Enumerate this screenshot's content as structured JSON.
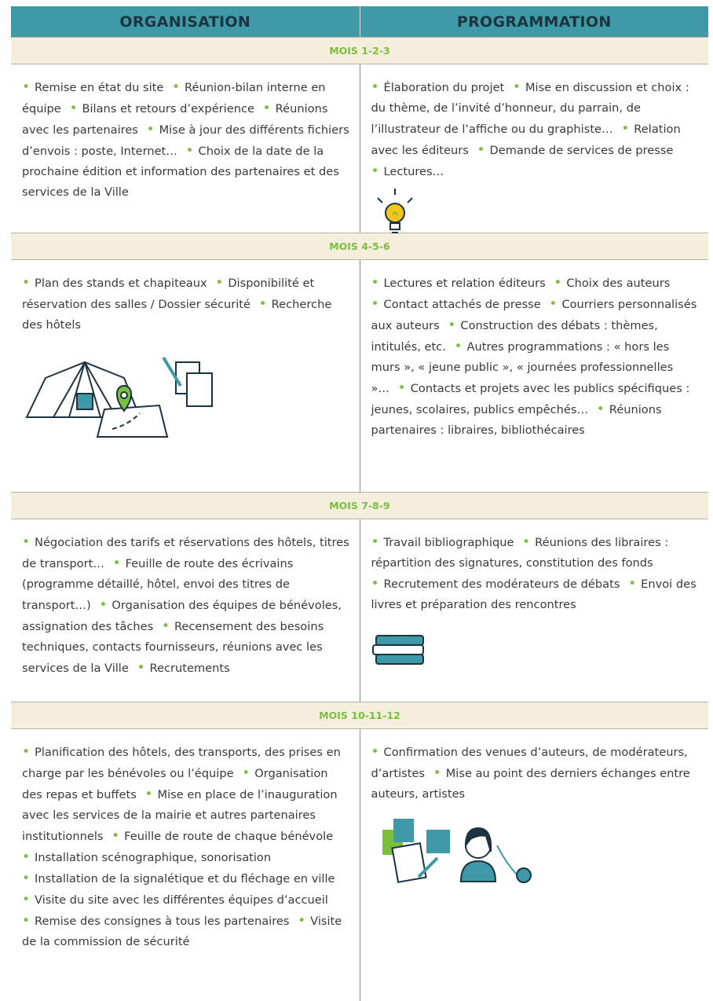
{
  "header": {
    "organisation": "ORGANISATION",
    "programmation": "PROGRAMMATION"
  },
  "sections": [
    {
      "month": "MOIS 1-2-3",
      "organisation": [
        "Remise en état du site",
        "Réunion-bilan interne en équipe",
        "Bilans et retours d’expérience",
        "Réunions avec les partenaires",
        "Mise à jour des différents fichiers d’envois : poste, Internet…",
        "Choix de la date de la prochaine édition et information des partenaires et des services de la Ville"
      ],
      "programmation": [
        "Élaboration du projet",
        "Mise en discussion et choix : du thème, de l’invité d’honneur, du parrain, de l’illustrateur de l’affiche ou du graphiste…",
        "Relation avec les éditeurs",
        "Demande de services de presse",
        "Lectures…"
      ]
    },
    {
      "month": "MOIS 4-5-6",
      "organisation": [
        "Plan des stands et chapiteaux",
        "Disponibilité et réservation des salles / Dossier sécurité",
        "Recherche des hôtels"
      ],
      "programmation": [
        "Lectures et relation éditeurs",
        "Choix des auteurs",
        "Contact attachés de presse",
        "Courriers personnalisés aux auteurs",
        "Construction des débats : thèmes, intitulés, etc.",
        "Autres programmations : « hors les murs », « jeune public », « journées professionnelles »…",
        "Contacts et projets avec les publics spécifiques : jeunes, scolaires, publics empêchés…",
        "Réunions partenaires : libraires, bibliothécaires"
      ]
    },
    {
      "month": "MOIS 7-8-9",
      "organisation": [
        "Négociation des tarifs et réservations des hôtels, titres de transport…",
        "Feuille de route des écrivains (programme détaillé, hôtel, envoi des titres de transport…)",
        "Organisation des équipes de bénévoles, assignation des tâches",
        "Recensement des besoins techniques, contacts fournisseurs, réunions avec les services de la Ville",
        "Recrutements"
      ],
      "programmation": [
        "Travail bibliographique",
        "Réunions des libraires : répartition des signatures, constitution des fonds",
        "Recrutement des modérateurs de débats",
        "Envoi des livres et préparation des rencontres"
      ]
    },
    {
      "month": "MOIS 10-11-12",
      "organisation": [
        "Planification des hôtels, des transports, des prises en charge par les bénévoles ou l’équipe",
        "Organisation des repas et buffets",
        "Mise en place de l’inauguration avec les services de la mairie et autres partenaires institutionnels",
        "Feuille de route de chaque bénévole",
        "Installation scénographique, sonorisation",
        "Installation de la signalétique et du fléchage en ville",
        "Visite du site avec les différentes équipes d’accueil",
        "Remise des consignes à tous les partenaires",
        "Visite de la commission de sécurité"
      ],
      "programmation": [
        "Confirmation des venues d’auteurs, de modérateurs, d’artistes",
        "Mise au point des derniers échanges entre auteurs, artistes"
      ]
    }
  ]
}
